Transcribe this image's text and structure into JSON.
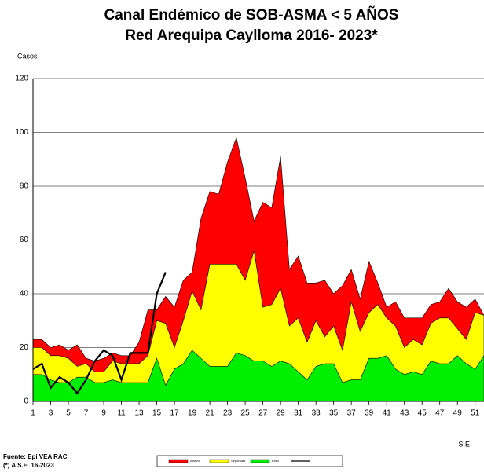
{
  "chart_data": {
    "type": "area",
    "title": "Canal Endémico de SOB-ASMA < 5 AÑOS",
    "subtitle": "Red Arequipa Caylloma 2016- 2023*",
    "y_label": "Casos",
    "x_label": "S.E",
    "source": "Fuente: Epi VEA RAC",
    "note": "(*) A S.E. 16-2023",
    "x": [
      1,
      2,
      3,
      4,
      5,
      6,
      7,
      8,
      9,
      10,
      11,
      12,
      13,
      14,
      15,
      16,
      17,
      18,
      19,
      20,
      21,
      22,
      23,
      24,
      25,
      26,
      27,
      28,
      29,
      30,
      31,
      32,
      33,
      34,
      35,
      36,
      37,
      38,
      39,
      40,
      41,
      42,
      43,
      44,
      45,
      46,
      47,
      48,
      49,
      50,
      51,
      52
    ],
    "series": [
      {
        "name": "Alarma",
        "color": "#ff0000",
        "values": [
          23,
          23,
          20,
          21,
          19,
          21,
          16,
          15,
          16,
          18,
          17,
          17,
          22,
          34,
          34,
          39,
          35,
          45,
          48,
          68,
          78,
          77,
          89,
          98,
          83,
          67,
          74,
          72,
          91,
          49,
          54,
          44,
          44,
          45,
          40,
          43,
          49,
          38,
          52,
          44,
          35,
          37,
          31,
          31,
          31,
          36,
          37,
          42,
          37,
          35,
          38,
          32
        ]
      },
      {
        "name": "Seguridad",
        "color": "#ffff00",
        "values": [
          20,
          20,
          17,
          17,
          16,
          13,
          14,
          11,
          11,
          15,
          14,
          14,
          14,
          17,
          30,
          29,
          20,
          30,
          41,
          34,
          51,
          51,
          51,
          51,
          45,
          56,
          35,
          36,
          42,
          28,
          31,
          22,
          30,
          24,
          28,
          19,
          37,
          26,
          33,
          36,
          31,
          28,
          20,
          23,
          21,
          29,
          31,
          31,
          27,
          23,
          33,
          32
        ]
      },
      {
        "name": "Éxito",
        "color": "#00ee00",
        "values": [
          10,
          10,
          8,
          7,
          7,
          9,
          9,
          7,
          7,
          8,
          7,
          7,
          7,
          7,
          16,
          6,
          12,
          14,
          19,
          16,
          13,
          13,
          13,
          18,
          17,
          15,
          15,
          13,
          15,
          14,
          11,
          8,
          13,
          14,
          14,
          7,
          8,
          8,
          16,
          16,
          17,
          12,
          10,
          11,
          10,
          15,
          14,
          14,
          17,
          14,
          12,
          17
        ]
      },
      {
        "type": "line",
        "color": "#000000",
        "values": [
          12,
          14,
          5,
          9,
          7,
          3,
          8,
          15,
          19,
          17,
          8,
          18,
          18,
          18,
          40,
          48,
          null,
          null,
          null,
          null,
          null,
          null,
          null,
          null,
          null,
          null,
          null,
          null,
          null,
          null,
          null,
          null,
          null,
          null,
          null,
          null,
          null,
          null,
          null,
          null,
          null,
          null,
          null,
          null,
          null,
          null,
          null,
          null,
          null,
          null,
          null,
          null
        ]
      }
    ],
    "xlim": [
      1,
      52
    ],
    "xticks": [
      1,
      3,
      5,
      7,
      9,
      11,
      13,
      15,
      17,
      19,
      21,
      23,
      25,
      27,
      29,
      31,
      33,
      35,
      37,
      39,
      41,
      43,
      45,
      47,
      49,
      51
    ],
    "ylim": [
      0,
      120
    ],
    "yticks": [
      0,
      20,
      40,
      60,
      80,
      100,
      120
    ],
    "grid": true
  }
}
